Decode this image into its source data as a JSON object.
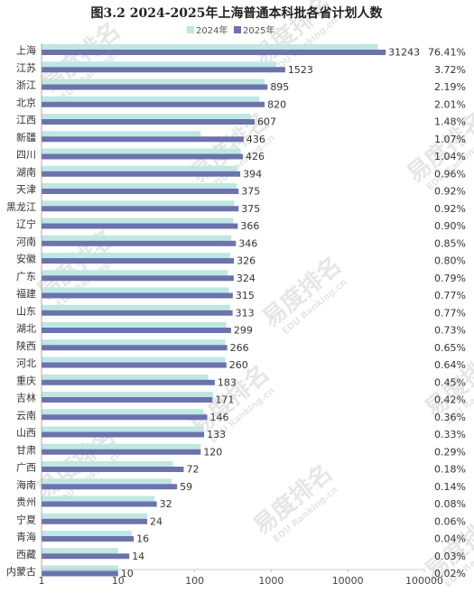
{
  "chart_data": {
    "type": "bar",
    "orientation": "horizontal",
    "title": "图3.2 2024-2025年上海普通本科批各省计划人数",
    "x_scale": "log",
    "xlim": [
      1,
      100000
    ],
    "x_ticks": [
      "1",
      "10",
      "100",
      "1000",
      "10000",
      "100000"
    ],
    "grid": false,
    "legend_position": "top",
    "categories": [
      "上海",
      "江苏",
      "浙江",
      "北京",
      "江西",
      "新疆",
      "四川",
      "湖南",
      "天津",
      "黑龙江",
      "辽宁",
      "河南",
      "安徽",
      "广东",
      "福建",
      "山东",
      "湖北",
      "陕西",
      "河北",
      "重庆",
      "吉林",
      "云南",
      "山西",
      "甘肃",
      "广西",
      "海南",
      "贵州",
      "宁夏",
      "青海",
      "西藏",
      "内蒙古"
    ],
    "series": [
      {
        "name": "2024年",
        "color": "#bfe7e3",
        "values": [
          24800,
          1180,
          820,
          700,
          540,
          120,
          400,
          360,
          355,
          330,
          320,
          300,
          290,
          270,
          280,
          290,
          260,
          250,
          250,
          150,
          175,
          130,
          130,
          120,
          52,
          50,
          30,
          24,
          15,
          10,
          10
        ]
      },
      {
        "name": "2025年",
        "color": "#6b73ac",
        "values": [
          31243,
          1523,
          895,
          820,
          607,
          436,
          426,
          394,
          375,
          375,
          366,
          346,
          326,
          324,
          315,
          313,
          299,
          266,
          260,
          183,
          171,
          146,
          133,
          120,
          72,
          59,
          32,
          24,
          16,
          14,
          10
        ]
      }
    ],
    "value_labels": [
      "31243",
      "1523",
      "895",
      "820",
      "607",
      "436",
      "426",
      "394",
      "375",
      "375",
      "366",
      "346",
      "326",
      "324",
      "315",
      "313",
      "299",
      "266",
      "260",
      "183",
      "171",
      "146",
      "133",
      "120",
      "72",
      "59",
      "32",
      "24",
      "16",
      "14",
      "10"
    ],
    "share_labels": [
      "76.41%",
      "3.72%",
      "2.19%",
      "2.01%",
      "1.48%",
      "1.07%",
      "1.04%",
      "0.96%",
      "0.92%",
      "0.92%",
      "0.90%",
      "0.85%",
      "0.80%",
      "0.79%",
      "0.77%",
      "0.77%",
      "0.73%",
      "0.65%",
      "0.64%",
      "0.45%",
      "0.42%",
      "0.36%",
      "0.33%",
      "0.29%",
      "0.18%",
      "0.14%",
      "0.08%",
      "0.06%",
      "0.04%",
      "0.03%",
      "0.02%"
    ]
  },
  "watermark": {
    "text": "易度排名",
    "sub": "EDU Ranking.cn",
    "color": "#e6e6e6"
  }
}
